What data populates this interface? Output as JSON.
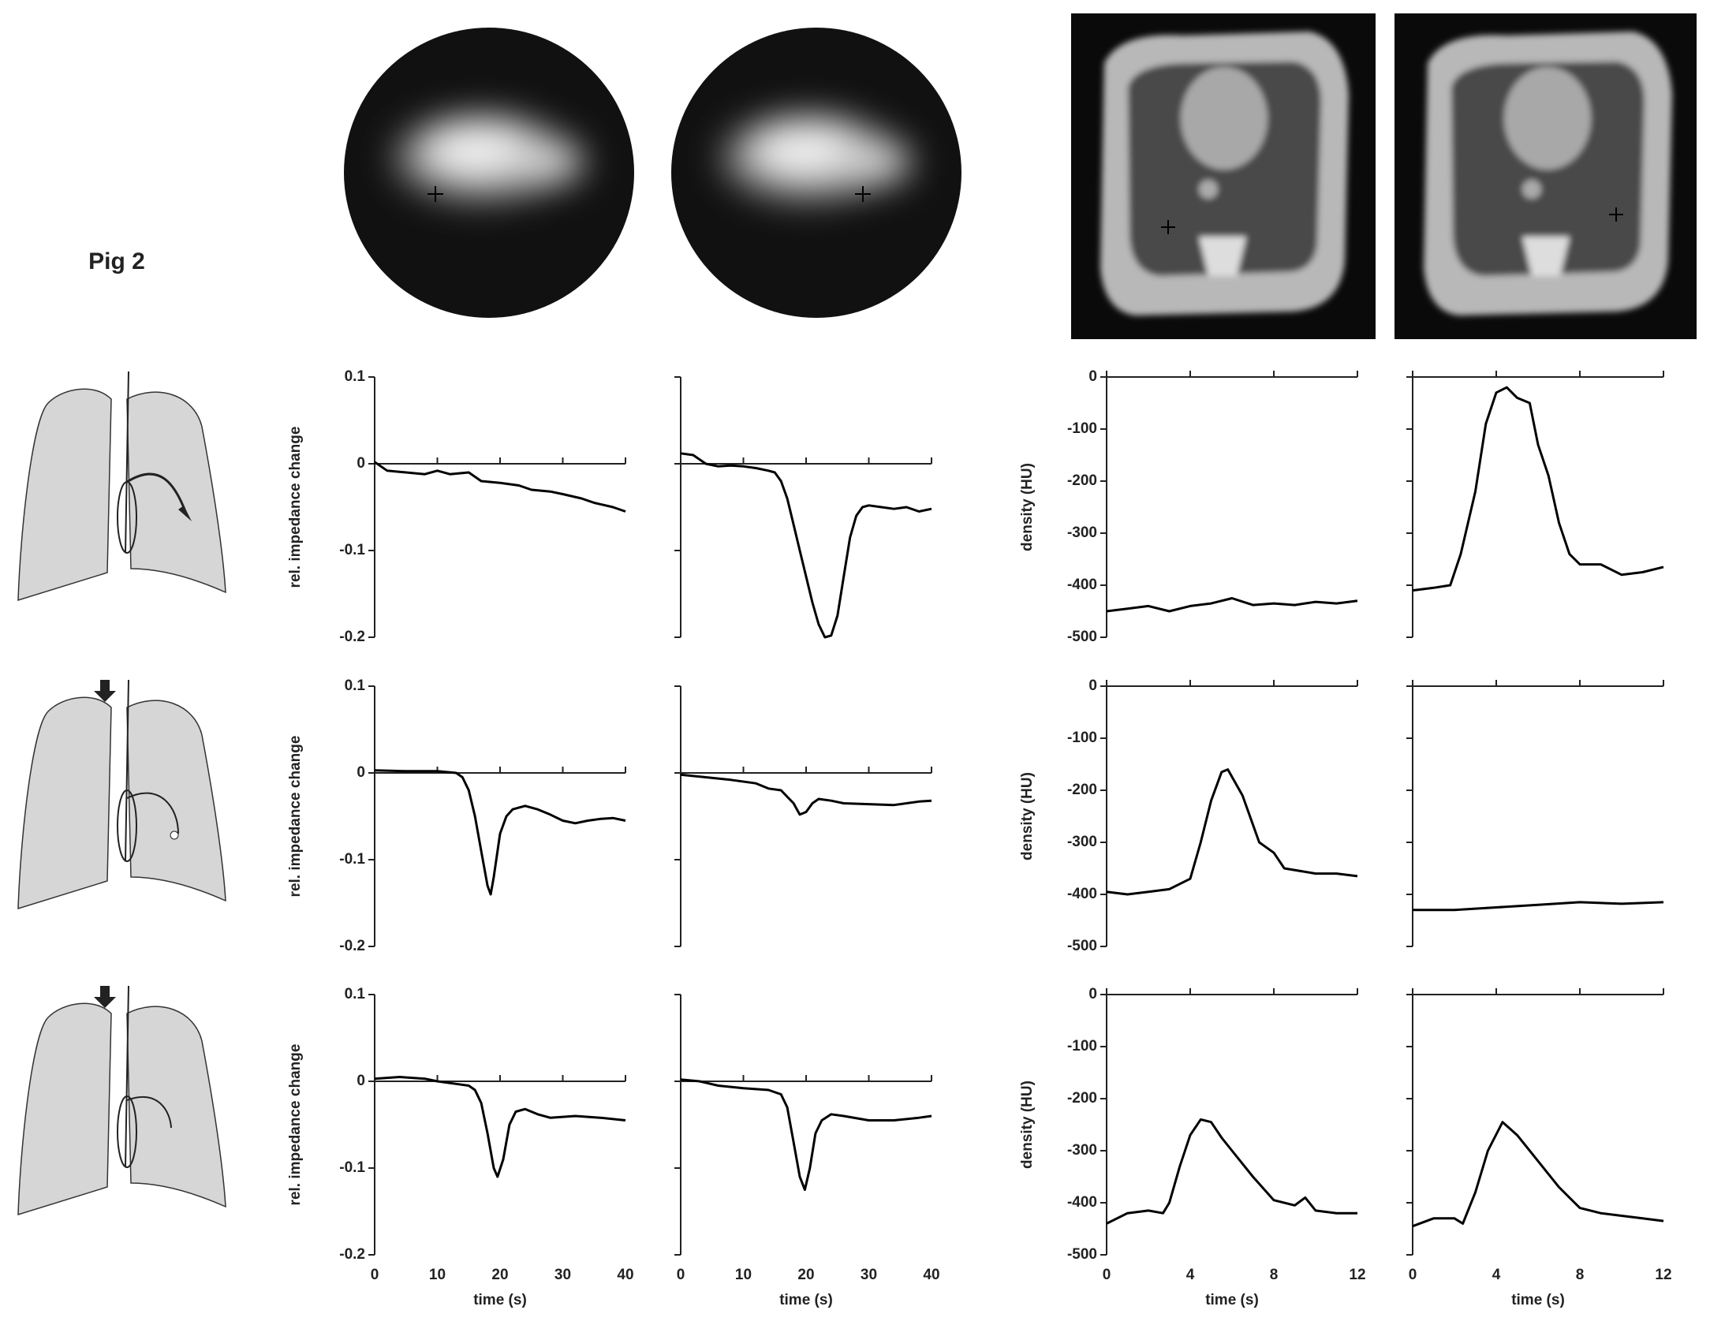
{
  "figure_label": "Pig 2",
  "chart_data": [
    {
      "type": "line",
      "ylabel": "rel. impedance change",
      "color": "#000000",
      "xlim": [
        0,
        40
      ],
      "ylim": [
        -0.2,
        0.1
      ],
      "xticks": [
        0,
        10,
        20,
        30,
        40
      ],
      "yticks": [
        -0.2,
        -0.1,
        0,
        0.1
      ],
      "zero_line": true,
      "show_xtick_labels": false,
      "show_ytick_labels": true,
      "x": [
        0,
        2,
        5,
        8,
        10,
        12,
        15,
        17,
        20,
        23,
        25,
        28,
        30,
        33,
        35,
        38,
        40
      ],
      "values": [
        0.002,
        -0.008,
        -0.01,
        -0.012,
        -0.008,
        -0.012,
        -0.01,
        -0.02,
        -0.022,
        -0.025,
        -0.03,
        -0.032,
        -0.035,
        -0.04,
        -0.045,
        -0.05,
        -0.055
      ]
    },
    {
      "type": "line",
      "color": "#000000",
      "xlim": [
        0,
        40
      ],
      "ylim": [
        -0.2,
        0.1
      ],
      "xticks": [
        0,
        10,
        20,
        30,
        40
      ],
      "yticks": [
        -0.2,
        -0.1,
        0,
        0.1
      ],
      "zero_line": true,
      "show_xtick_labels": false,
      "show_ytick_labels": false,
      "x": [
        0,
        2,
        4,
        6,
        8,
        10,
        12,
        14,
        15,
        16,
        17,
        18,
        19,
        20,
        21,
        22,
        23,
        24,
        25,
        26,
        27,
        28,
        29,
        30,
        32,
        34,
        36,
        38,
        40
      ],
      "values": [
        0.012,
        0.01,
        0,
        -0.003,
        -0.002,
        -0.003,
        -0.005,
        -0.008,
        -0.01,
        -0.02,
        -0.04,
        -0.07,
        -0.1,
        -0.13,
        -0.16,
        -0.185,
        -0.2,
        -0.198,
        -0.175,
        -0.13,
        -0.085,
        -0.06,
        -0.05,
        -0.048,
        -0.05,
        -0.052,
        -0.05,
        -0.055,
        -0.052
      ]
    },
    {
      "type": "line",
      "ylabel": "rel. impedance change",
      "color": "#000000",
      "xlim": [
        0,
        40
      ],
      "ylim": [
        -0.2,
        0.1
      ],
      "xticks": [
        0,
        10,
        20,
        30,
        40
      ],
      "yticks": [
        -0.2,
        -0.1,
        0,
        0.1
      ],
      "zero_line": true,
      "show_xtick_labels": false,
      "show_ytick_labels": true,
      "x": [
        0,
        5,
        10,
        13,
        14,
        15,
        16,
        17,
        18,
        18.5,
        19,
        20,
        21,
        22,
        24,
        26,
        28,
        30,
        32,
        34,
        36,
        38,
        40
      ],
      "values": [
        0.003,
        0.002,
        0.002,
        0,
        -0.005,
        -0.02,
        -0.05,
        -0.09,
        -0.13,
        -0.14,
        -0.12,
        -0.07,
        -0.05,
        -0.042,
        -0.038,
        -0.042,
        -0.048,
        -0.055,
        -0.058,
        -0.055,
        -0.053,
        -0.052,
        -0.055
      ]
    },
    {
      "type": "line",
      "color": "#000000",
      "xlim": [
        0,
        40
      ],
      "ylim": [
        -0.2,
        0.1
      ],
      "xticks": [
        0,
        10,
        20,
        30,
        40
      ],
      "yticks": [
        -0.2,
        -0.1,
        0,
        0.1
      ],
      "zero_line": true,
      "show_xtick_labels": false,
      "show_ytick_labels": false,
      "x": [
        0,
        4,
        8,
        12,
        14,
        16,
        18,
        19,
        20,
        21,
        22,
        24,
        26,
        30,
        34,
        38,
        40
      ],
      "values": [
        -0.002,
        -0.005,
        -0.008,
        -0.012,
        -0.018,
        -0.02,
        -0.035,
        -0.048,
        -0.045,
        -0.035,
        -0.03,
        -0.032,
        -0.035,
        -0.036,
        -0.037,
        -0.033,
        -0.032
      ]
    },
    {
      "type": "line",
      "ylabel": "rel. impedance change",
      "xlabel": "time (s)",
      "color": "#000000",
      "xlim": [
        0,
        40
      ],
      "ylim": [
        -0.2,
        0.1
      ],
      "xticks": [
        0,
        10,
        20,
        30,
        40
      ],
      "yticks": [
        -0.2,
        -0.1,
        0,
        0.1
      ],
      "zero_line": true,
      "show_xtick_labels": true,
      "show_ytick_labels": true,
      "x": [
        0,
        4,
        8,
        10,
        13,
        15,
        16,
        17,
        18,
        19,
        19.6,
        20.5,
        21.5,
        22.5,
        24,
        26,
        28,
        32,
        36,
        40
      ],
      "values": [
        0.003,
        0.005,
        0.003,
        0,
        -0.003,
        -0.005,
        -0.01,
        -0.025,
        -0.06,
        -0.1,
        -0.11,
        -0.09,
        -0.05,
        -0.035,
        -0.032,
        -0.038,
        -0.042,
        -0.04,
        -0.042,
        -0.045
      ]
    },
    {
      "type": "line",
      "xlabel": "time (s)",
      "color": "#000000",
      "xlim": [
        0,
        40
      ],
      "ylim": [
        -0.2,
        0.1
      ],
      "xticks": [
        0,
        10,
        20,
        30,
        40
      ],
      "yticks": [
        -0.2,
        -0.1,
        0,
        0.1
      ],
      "zero_line": true,
      "show_xtick_labels": true,
      "show_ytick_labels": false,
      "x": [
        0,
        3,
        6,
        10,
        14,
        16,
        17,
        18,
        19,
        19.8,
        20.6,
        21.5,
        22.5,
        24,
        26,
        30,
        34,
        38,
        40
      ],
      "values": [
        0.002,
        0,
        -0.005,
        -0.008,
        -0.01,
        -0.015,
        -0.03,
        -0.07,
        -0.11,
        -0.125,
        -0.1,
        -0.06,
        -0.045,
        -0.038,
        -0.04,
        -0.045,
        -0.045,
        -0.042,
        -0.04
      ]
    },
    {
      "type": "line",
      "ylabel": "density (HU)",
      "color": "#000000",
      "xlim": [
        0,
        12
      ],
      "ylim": [
        -500,
        0
      ],
      "xticks": [
        0,
        4,
        8,
        12
      ],
      "yticks": [
        -500,
        -400,
        -300,
        -200,
        -100,
        0
      ],
      "zero_line": true,
      "show_xtick_labels": false,
      "show_ytick_labels": true,
      "x": [
        0,
        1,
        2,
        3,
        4,
        5,
        6,
        7,
        8,
        9,
        10,
        11,
        12
      ],
      "values": [
        -450,
        -445,
        -440,
        -450,
        -440,
        -435,
        -425,
        -438,
        -435,
        -438,
        -432,
        -435,
        -430
      ]
    },
    {
      "type": "line",
      "color": "#000000",
      "xlim": [
        0,
        12
      ],
      "ylim": [
        -500,
        0
      ],
      "xticks": [
        0,
        4,
        8,
        12
      ],
      "yticks": [
        -500,
        -400,
        -300,
        -200,
        -100,
        0
      ],
      "zero_line": true,
      "show_xtick_labels": false,
      "show_ytick_labels": false,
      "x": [
        0,
        1,
        1.8,
        2.3,
        3,
        3.5,
        4,
        4.5,
        5,
        5.6,
        6,
        6.5,
        7,
        7.5,
        8,
        9,
        10,
        11,
        12
      ],
      "values": [
        -410,
        -405,
        -400,
        -340,
        -220,
        -90,
        -30,
        -20,
        -40,
        -50,
        -130,
        -190,
        -280,
        -340,
        -360,
        -360,
        -380,
        -375,
        -365
      ]
    },
    {
      "type": "line",
      "ylabel": "density (HU)",
      "color": "#000000",
      "xlim": [
        0,
        12
      ],
      "ylim": [
        -500,
        0
      ],
      "xticks": [
        0,
        4,
        8,
        12
      ],
      "yticks": [
        -500,
        -400,
        -300,
        -200,
        -100,
        0
      ],
      "zero_line": true,
      "show_xtick_labels": false,
      "show_ytick_labels": true,
      "x": [
        0,
        1,
        2,
        3,
        4,
        4.5,
        5,
        5.5,
        5.8,
        6.5,
        7.3,
        8,
        8.5,
        10,
        11,
        12
      ],
      "values": [
        -395,
        -400,
        -395,
        -390,
        -370,
        -300,
        -220,
        -165,
        -160,
        -210,
        -300,
        -320,
        -350,
        -360,
        -360,
        -365
      ]
    },
    {
      "type": "line",
      "color": "#000000",
      "xlim": [
        0,
        12
      ],
      "ylim": [
        -500,
        0
      ],
      "xticks": [
        0,
        4,
        8,
        12
      ],
      "yticks": [
        -500,
        -400,
        -300,
        -200,
        -100,
        0
      ],
      "zero_line": true,
      "show_xtick_labels": false,
      "show_ytick_labels": false,
      "x": [
        0,
        2,
        4,
        6,
        8,
        10,
        12
      ],
      "values": [
        -430,
        -430,
        -425,
        -420,
        -415,
        -418,
        -415
      ]
    },
    {
      "type": "line",
      "ylabel": "density (HU)",
      "xlabel": "time (s)",
      "color": "#000000",
      "xlim": [
        0,
        12
      ],
      "ylim": [
        -500,
        0
      ],
      "xticks": [
        0,
        4,
        8,
        12
      ],
      "yticks": [
        -500,
        -400,
        -300,
        -200,
        -100,
        0
      ],
      "zero_line": true,
      "show_xtick_labels": true,
      "show_ytick_labels": true,
      "x": [
        0,
        1,
        2,
        2.7,
        3,
        3.5,
        4,
        4.5,
        5,
        5.5,
        6,
        7,
        8,
        9,
        9.5,
        10,
        11,
        12
      ],
      "values": [
        -440,
        -420,
        -415,
        -420,
        -400,
        -330,
        -270,
        -240,
        -245,
        -275,
        -300,
        -350,
        -395,
        -405,
        -390,
        -415,
        -420,
        -420
      ]
    },
    {
      "type": "line",
      "xlabel": "time (s)",
      "color": "#000000",
      "xlim": [
        0,
        12
      ],
      "ylim": [
        -500,
        0
      ],
      "xticks": [
        0,
        4,
        8,
        12
      ],
      "yticks": [
        -500,
        -400,
        -300,
        -200,
        -100,
        0
      ],
      "zero_line": true,
      "show_xtick_labels": true,
      "show_ytick_labels": false,
      "x": [
        0,
        1,
        2,
        2.4,
        3,
        3.6,
        4.3,
        5,
        6,
        7,
        8,
        9,
        10,
        11,
        12
      ],
      "values": [
        -445,
        -430,
        -430,
        -440,
        -380,
        -300,
        -245,
        -270,
        -320,
        -370,
        -410,
        -420,
        -425,
        -430,
        -435
      ]
    }
  ]
}
